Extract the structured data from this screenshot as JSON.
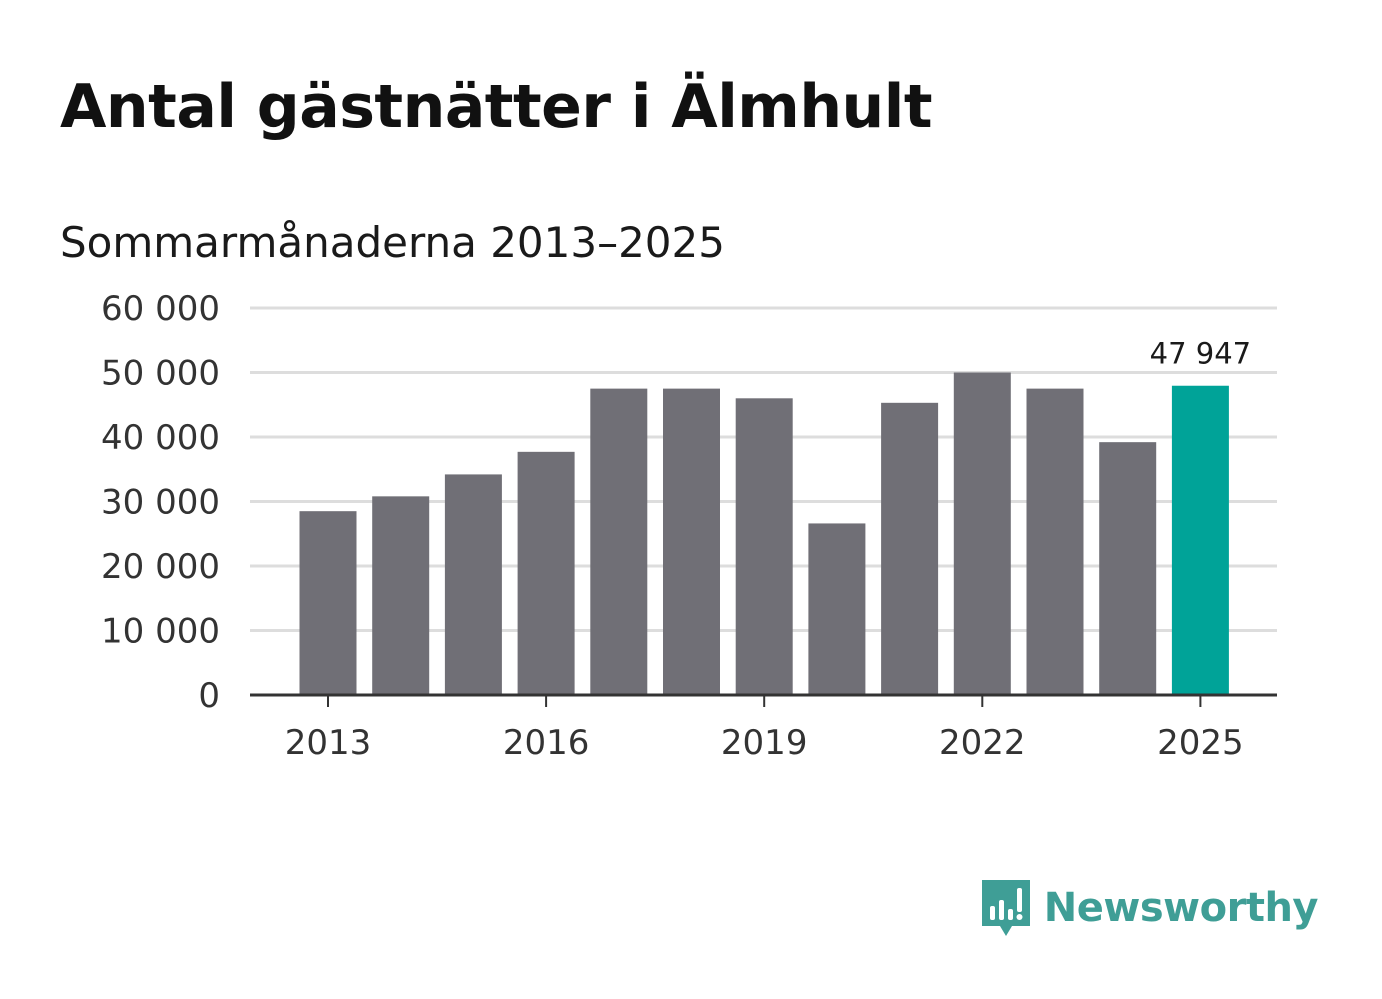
{
  "chart_data": {
    "type": "bar",
    "title": "Antal gästnätter i Älmhult",
    "subtitle": "Sommarmånaderna 2013–2025",
    "categories": [
      "2013",
      "2014",
      "2015",
      "2016",
      "2017",
      "2018",
      "2019",
      "2020",
      "2021",
      "2022",
      "2023",
      "2024",
      "2025"
    ],
    "values": [
      28500,
      30800,
      34200,
      37700,
      47500,
      47500,
      46000,
      26600,
      45300,
      50000,
      47500,
      39200,
      47947
    ],
    "ylim": [
      0,
      60000
    ],
    "yticks": [
      0,
      10000,
      20000,
      30000,
      40000,
      50000,
      60000
    ],
    "ytick_labels": [
      "0",
      "10 000",
      "20 000",
      "30 000",
      "40 000",
      "50 000",
      "60 000"
    ],
    "xtick_labels": [
      "2013",
      "2016",
      "2019",
      "2022",
      "2025"
    ],
    "highlight": {
      "category": "2025",
      "label": "47 947"
    },
    "grid": true,
    "colors": {
      "bar": "#706f76",
      "highlight": "#00a398",
      "grid": "#dddddd",
      "axis": "#333333"
    }
  },
  "brand": {
    "name": "Newsworthy",
    "icon": "newsworthy-logo-icon",
    "color": "#3f9e96"
  }
}
